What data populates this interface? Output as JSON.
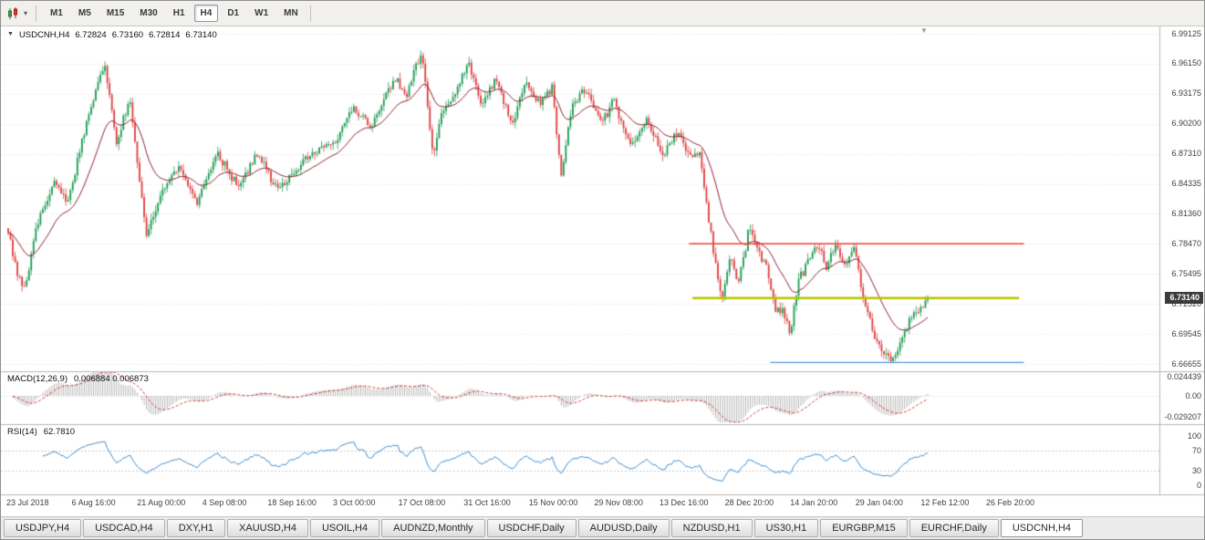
{
  "toolbar": {
    "icons": {
      "chart_type": "candlestick-chart",
      "dropdown": "▾"
    },
    "timeframes": [
      {
        "label": "M1",
        "active": false
      },
      {
        "label": "M5",
        "active": false
      },
      {
        "label": "M15",
        "active": false
      },
      {
        "label": "M30",
        "active": false
      },
      {
        "label": "H1",
        "active": false
      },
      {
        "label": "H4",
        "active": true
      },
      {
        "label": "D1",
        "active": false
      },
      {
        "label": "W1",
        "active": false
      },
      {
        "label": "MN",
        "active": false
      }
    ]
  },
  "chart": {
    "title_marker": "▼",
    "symbol": "USDCNH,H4",
    "open": "6.72824",
    "high": "6.73160",
    "low": "6.72814",
    "close": "6.73140",
    "current_price": "6.73140",
    "shift_marker": "▼",
    "price_axis": [
      "6.99125",
      "6.96150",
      "6.93175",
      "6.90200",
      "6.87310",
      "6.84335",
      "6.81360",
      "6.78470",
      "6.75495",
      "6.72520",
      "6.69545",
      "6.66655"
    ],
    "date_axis": [
      "23 Jul 2018",
      "6 Aug 16:00",
      "21 Aug 00:00",
      "4 Sep 08:00",
      "18 Sep 16:00",
      "3 Oct 00:00",
      "17 Oct 08:00",
      "31 Oct 16:00",
      "15 Nov 00:00",
      "29 Nov 08:00",
      "13 Dec 16:00",
      "28 Dec 20:00",
      "14 Jan 20:00",
      "29 Jan 04:00",
      "12 Feb 12:00",
      "26 Feb 20:00"
    ]
  },
  "indicators": {
    "macd": {
      "label": "MACD(12,26,9)",
      "values": "0.006884 0.006873",
      "scale": [
        "0.024439",
        "0.00",
        "-0.029207"
      ]
    },
    "rsi": {
      "label": "RSI(14)",
      "value": "62.7810",
      "scale": [
        "100",
        "70",
        "30",
        "0"
      ]
    }
  },
  "tabs": [
    {
      "label": "USDJPY,H4",
      "active": false
    },
    {
      "label": "USDCAD,H4",
      "active": false
    },
    {
      "label": "DXY,H1",
      "active": false
    },
    {
      "label": "XAUUSD,H4",
      "active": false
    },
    {
      "label": "USOIL,H4",
      "active": false
    },
    {
      "label": "AUDNZD,Monthly",
      "active": false
    },
    {
      "label": "USDCHF,Daily",
      "active": false
    },
    {
      "label": "AUDUSD,Daily",
      "active": false
    },
    {
      "label": "NZDUSD,H1",
      "active": false
    },
    {
      "label": "US30,H1",
      "active": false
    },
    {
      "label": "EURGBP,M15",
      "active": false
    },
    {
      "label": "EURCHF,Daily",
      "active": false
    },
    {
      "label": "USDCNH,H4",
      "active": true
    }
  ],
  "chart_data": {
    "type": "candlestick",
    "symbol": "USDCNH",
    "timeframe": "H4",
    "title": "USDCNH,H4",
    "grid": true,
    "candles": 400,
    "y_range": [
      6.66655,
      6.99125
    ],
    "last_ohlc": {
      "open": 6.72824,
      "high": 6.7316,
      "low": 6.72814,
      "close": 6.7314
    },
    "last_close": 6.7314,
    "price_path_anchors": [
      [
        0.0,
        6.8
      ],
      [
        0.008,
        6.76
      ],
      [
        0.018,
        6.738
      ],
      [
        0.03,
        6.8
      ],
      [
        0.05,
        6.845
      ],
      [
        0.065,
        6.825
      ],
      [
        0.085,
        6.905
      ],
      [
        0.105,
        6.963
      ],
      [
        0.118,
        6.883
      ],
      [
        0.132,
        6.93
      ],
      [
        0.15,
        6.792
      ],
      [
        0.168,
        6.838
      ],
      [
        0.185,
        6.862
      ],
      [
        0.205,
        6.825
      ],
      [
        0.228,
        6.872
      ],
      [
        0.25,
        6.84
      ],
      [
        0.27,
        6.872
      ],
      [
        0.295,
        6.838
      ],
      [
        0.325,
        6.87
      ],
      [
        0.355,
        6.885
      ],
      [
        0.375,
        6.918
      ],
      [
        0.395,
        6.898
      ],
      [
        0.42,
        6.948
      ],
      [
        0.433,
        6.928
      ],
      [
        0.45,
        6.977
      ],
      [
        0.458,
        6.905
      ],
      [
        0.462,
        6.87
      ],
      [
        0.472,
        6.915
      ],
      [
        0.487,
        6.932
      ],
      [
        0.5,
        6.962
      ],
      [
        0.515,
        6.92
      ],
      [
        0.53,
        6.948
      ],
      [
        0.548,
        6.902
      ],
      [
        0.562,
        6.942
      ],
      [
        0.578,
        6.922
      ],
      [
        0.592,
        6.94
      ],
      [
        0.601,
        6.848
      ],
      [
        0.612,
        6.918
      ],
      [
        0.628,
        6.938
      ],
      [
        0.645,
        6.902
      ],
      [
        0.658,
        6.926
      ],
      [
        0.678,
        6.88
      ],
      [
        0.695,
        6.906
      ],
      [
        0.712,
        6.872
      ],
      [
        0.728,
        6.895
      ],
      [
        0.742,
        6.872
      ],
      [
        0.752,
        6.876
      ],
      [
        0.76,
        6.82
      ],
      [
        0.768,
        6.77
      ],
      [
        0.776,
        6.732
      ],
      [
        0.786,
        6.773
      ],
      [
        0.794,
        6.745
      ],
      [
        0.806,
        6.8
      ],
      [
        0.815,
        6.78
      ],
      [
        0.825,
        6.76
      ],
      [
        0.835,
        6.718
      ],
      [
        0.842,
        6.722
      ],
      [
        0.85,
        6.696
      ],
      [
        0.86,
        6.748
      ],
      [
        0.872,
        6.772
      ],
      [
        0.882,
        6.784
      ],
      [
        0.89,
        6.762
      ],
      [
        0.9,
        6.786
      ],
      [
        0.91,
        6.762
      ],
      [
        0.92,
        6.782
      ],
      [
        0.93,
        6.73
      ],
      [
        0.94,
        6.7
      ],
      [
        0.952,
        6.676
      ],
      [
        0.962,
        6.672
      ],
      [
        0.972,
        6.692
      ],
      [
        0.982,
        6.714
      ],
      [
        0.992,
        6.722
      ],
      [
        1.0,
        6.7314
      ]
    ],
    "horizontal_lines": [
      {
        "name": "resistance-line",
        "price": 6.7847,
        "color": "#f03c32",
        "width": 1.4,
        "x_span": [
          0.594,
          0.883
        ]
      },
      {
        "name": "current-level-line",
        "price": 6.7314,
        "color": "#b9c400",
        "width": 2.6,
        "x_span": [
          0.597,
          0.879
        ]
      },
      {
        "name": "support-line",
        "price": 6.668,
        "color": "#4f9bd9",
        "width": 1.2,
        "x_span": [
          0.664,
          0.883
        ]
      }
    ],
    "moving_average": {
      "type": "ema",
      "period": 21,
      "color": "#8e2433"
    },
    "macd": {
      "fast": 12,
      "slow": 26,
      "signal": 9,
      "current_macd": 0.006884,
      "current_signal": 0.006873,
      "scale_max": 0.024439,
      "scale_min": -0.029207,
      "histogram_color": "#b5b5b5",
      "signal_color": "#d23b3b"
    },
    "rsi": {
      "period": 14,
      "current": 62.781,
      "levels": [
        30,
        70
      ],
      "line_color": "#3e8ed0"
    },
    "colors": {
      "bull": "#1f9d55",
      "bear": "#e04343",
      "grid": "#e3e3e3",
      "separator": "#b8b8b8",
      "badge_bg": "#3b3b3b"
    }
  }
}
